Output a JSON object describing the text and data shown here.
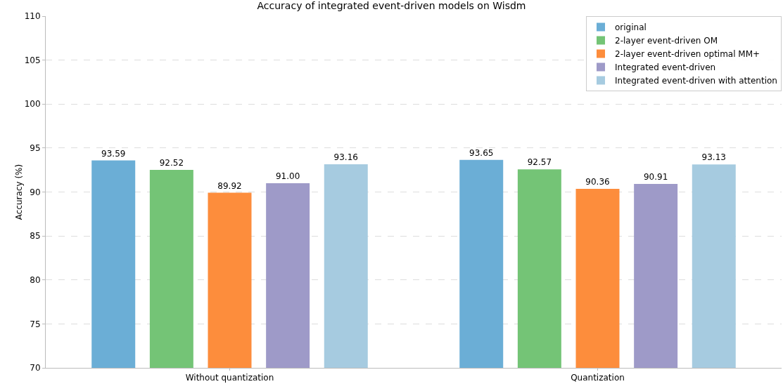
{
  "chart_data": {
    "type": "bar",
    "title": "Accuracy of integrated event-driven models on Wisdm",
    "ylabel": "Accuracy (%)",
    "categories": [
      "Without quantization",
      "Quantization"
    ],
    "series": [
      {
        "name": "original",
        "color": "#6baed6",
        "values": [
          93.59,
          93.65
        ],
        "value_labels": [
          "93.59",
          "93.65"
        ]
      },
      {
        "name": "2-layer event-driven OM",
        "color": "#74c476",
        "values": [
          92.52,
          92.57
        ],
        "value_labels": [
          "92.52",
          "92.57"
        ]
      },
      {
        "name": "2-layer event-driven optimal MM+",
        "color": "#fd8d3c",
        "values": [
          89.92,
          90.36
        ],
        "value_labels": [
          "89.92",
          "90.36"
        ]
      },
      {
        "name": "Integrated event-driven",
        "color": "#9e9ac8",
        "values": [
          91.0,
          90.91
        ],
        "value_labels": [
          "91.00",
          "90.91"
        ]
      },
      {
        "name": "Integrated event-driven with attention",
        "color": "#a6cbe0",
        "values": [
          93.16,
          93.13
        ],
        "value_labels": [
          "93.16",
          "93.13"
        ]
      }
    ],
    "ylim": [
      70,
      110
    ],
    "yticks": [
      70,
      75,
      80,
      85,
      90,
      95,
      100,
      105,
      110
    ],
    "grid": "y",
    "legend": "top right"
  }
}
